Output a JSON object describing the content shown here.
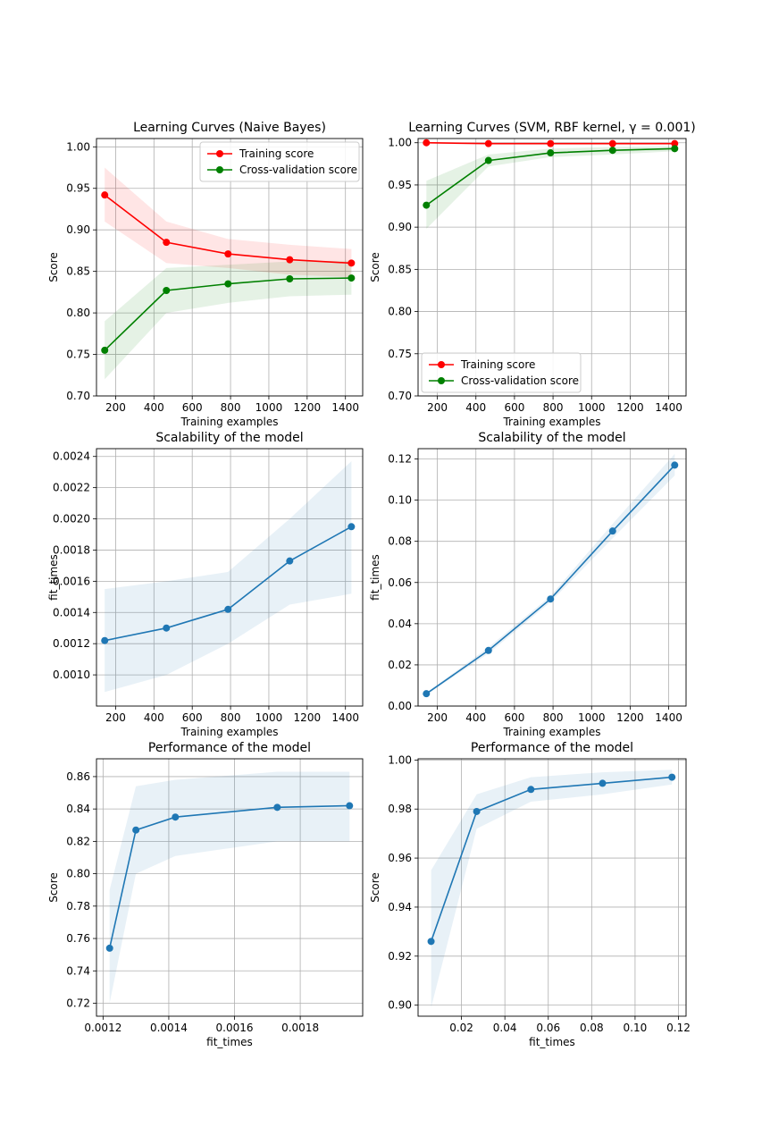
{
  "chart_data": [
    {
      "type": "line",
      "title": "Learning Curves (Naive Bayes)",
      "xlabel": "Training examples",
      "ylabel": "Score",
      "xlim": [
        100,
        1490
      ],
      "ylim": [
        0.7,
        1.01
      ],
      "xticks": [
        200,
        400,
        600,
        800,
        1000,
        1200,
        1400
      ],
      "yticks": [
        0.7,
        0.75,
        0.8,
        0.85,
        0.9,
        0.95,
        1.0
      ],
      "xtick_labels": [
        "200",
        "400",
        "600",
        "800",
        "1000",
        "1200",
        "1400"
      ],
      "ytick_labels": [
        "0.70",
        "0.75",
        "0.80",
        "0.85",
        "0.90",
        "0.95",
        "1.00"
      ],
      "grid": true,
      "legend": "upper right",
      "x": [
        143,
        465,
        787,
        1109,
        1431
      ],
      "series": [
        {
          "name": "Training score",
          "color": "#ff0000",
          "values": [
            0.942,
            0.885,
            0.871,
            0.864,
            0.86
          ],
          "band_lower": [
            0.91,
            0.86,
            0.854,
            0.846,
            0.843
          ],
          "band_upper": [
            0.975,
            0.91,
            0.889,
            0.882,
            0.877
          ]
        },
        {
          "name": "Cross-validation score",
          "color": "#008000",
          "values": [
            0.755,
            0.827,
            0.835,
            0.841,
            0.842
          ],
          "band_lower": [
            0.72,
            0.8,
            0.812,
            0.82,
            0.822
          ],
          "band_upper": [
            0.79,
            0.854,
            0.858,
            0.862,
            0.863
          ]
        }
      ]
    },
    {
      "type": "line",
      "title": "Learning Curves (SVM, RBF kernel, γ = 0.001)",
      "xlabel": "Training examples",
      "ylabel": "Score",
      "xlim": [
        100,
        1490
      ],
      "ylim": [
        0.7,
        1.005
      ],
      "xticks": [
        200,
        400,
        600,
        800,
        1000,
        1200,
        1400
      ],
      "yticks": [
        0.7,
        0.75,
        0.8,
        0.85,
        0.9,
        0.95,
        1.0
      ],
      "xtick_labels": [
        "200",
        "400",
        "600",
        "800",
        "1000",
        "1200",
        "1400"
      ],
      "ytick_labels": [
        "0.70",
        "0.75",
        "0.80",
        "0.85",
        "0.90",
        "0.95",
        "1.00"
      ],
      "grid": true,
      "legend": "lower left",
      "x": [
        143,
        465,
        787,
        1109,
        1431
      ],
      "series": [
        {
          "name": "Training score",
          "color": "#ff0000",
          "values": [
            1.0,
            0.999,
            0.999,
            0.999,
            0.999
          ],
          "band_lower": [
            0.999,
            0.998,
            0.998,
            0.998,
            0.998
          ],
          "band_upper": [
            1.0,
            1.0,
            1.0,
            1.0,
            1.0
          ]
        },
        {
          "name": "Cross-validation score",
          "color": "#008000",
          "values": [
            0.926,
            0.979,
            0.988,
            0.991,
            0.993
          ],
          "band_lower": [
            0.898,
            0.972,
            0.983,
            0.986,
            0.99
          ],
          "band_upper": [
            0.955,
            0.986,
            0.993,
            0.995,
            0.996
          ]
        }
      ]
    },
    {
      "type": "line",
      "title": "Scalability of the model",
      "xlabel": "Training examples",
      "ylabel": "fit_times",
      "xlim": [
        100,
        1490
      ],
      "ylim": [
        0.0008,
        0.00245
      ],
      "xticks": [
        200,
        400,
        600,
        800,
        1000,
        1200,
        1400
      ],
      "yticks": [
        0.001,
        0.0012,
        0.0014,
        0.0016,
        0.0018,
        0.002,
        0.0022,
        0.0024
      ],
      "xtick_labels": [
        "200",
        "400",
        "600",
        "800",
        "1000",
        "1200",
        "1400"
      ],
      "ytick_labels": [
        "0.0010",
        "0.0012",
        "0.0014",
        "0.0016",
        "0.0018",
        "0.0020",
        "0.0022",
        "0.0024"
      ],
      "grid": true,
      "x": [
        143,
        465,
        787,
        1109,
        1431
      ],
      "series": [
        {
          "color": "#1f77b4",
          "values": [
            0.00122,
            0.0013,
            0.00142,
            0.00173,
            0.00195
          ],
          "band_lower": [
            0.00089,
            0.001,
            0.0012,
            0.00145,
            0.00152
          ],
          "band_upper": [
            0.00155,
            0.0016,
            0.00166,
            0.002,
            0.00237
          ]
        }
      ]
    },
    {
      "type": "line",
      "title": "Scalability of the model",
      "xlabel": "Training examples",
      "ylabel": "fit_times",
      "xlim": [
        100,
        1490
      ],
      "ylim": [
        0.0,
        0.125
      ],
      "xticks": [
        200,
        400,
        600,
        800,
        1000,
        1200,
        1400
      ],
      "yticks": [
        0.0,
        0.02,
        0.04,
        0.06,
        0.08,
        0.1,
        0.12
      ],
      "xtick_labels": [
        "200",
        "400",
        "600",
        "800",
        "1000",
        "1200",
        "1400"
      ],
      "ytick_labels": [
        "0.00",
        "0.02",
        "0.04",
        "0.06",
        "0.08",
        "0.10",
        "0.12"
      ],
      "grid": true,
      "x": [
        143,
        465,
        787,
        1109,
        1431
      ],
      "series": [
        {
          "color": "#1f77b4",
          "values": [
            0.006,
            0.027,
            0.052,
            0.085,
            0.117
          ],
          "band_lower": [
            0.0055,
            0.0255,
            0.0505,
            0.0815,
            0.112
          ],
          "band_upper": [
            0.0065,
            0.0285,
            0.0535,
            0.0885,
            0.1225
          ]
        }
      ]
    },
    {
      "type": "line",
      "title": "Performance of the model",
      "xlabel": "fit_times",
      "ylabel": "Score",
      "xlim": [
        0.00118,
        0.00199
      ],
      "ylim": [
        0.712,
        0.871
      ],
      "xticks": [
        0.0012,
        0.0014,
        0.0016,
        0.0018
      ],
      "yticks": [
        0.72,
        0.74,
        0.76,
        0.78,
        0.8,
        0.82,
        0.84,
        0.86
      ],
      "xtick_labels": [
        "0.0012",
        "0.0014",
        "0.0016",
        "0.0018"
      ],
      "ytick_labels": [
        "0.72",
        "0.74",
        "0.76",
        "0.78",
        "0.80",
        "0.82",
        "0.84",
        "0.86"
      ],
      "grid": true,
      "x": [
        0.00122,
        0.0013,
        0.00142,
        0.00173,
        0.00195
      ],
      "series": [
        {
          "color": "#1f77b4",
          "values": [
            0.754,
            0.827,
            0.835,
            0.841,
            0.842
          ],
          "band_lower": [
            0.72,
            0.8,
            0.811,
            0.82,
            0.82
          ],
          "band_upper": [
            0.79,
            0.854,
            0.858,
            0.863,
            0.863
          ]
        }
      ]
    },
    {
      "type": "line",
      "title": "Performance of the model",
      "xlabel": "fit_times",
      "ylabel": "Score",
      "xlim": [
        0.0,
        0.1235
      ],
      "ylim": [
        0.8955,
        1.0005
      ],
      "xticks": [
        0.02,
        0.04,
        0.06,
        0.08,
        0.1,
        0.12
      ],
      "yticks": [
        0.9,
        0.92,
        0.94,
        0.96,
        0.98,
        1.0
      ],
      "xtick_labels": [
        "0.02",
        "0.04",
        "0.06",
        "0.08",
        "0.10",
        "0.12"
      ],
      "ytick_labels": [
        "0.90",
        "0.92",
        "0.94",
        "0.96",
        "0.98",
        "1.00"
      ],
      "grid": true,
      "x": [
        0.006,
        0.027,
        0.052,
        0.085,
        0.117
      ],
      "series": [
        {
          "color": "#1f77b4",
          "values": [
            0.926,
            0.979,
            0.988,
            0.9905,
            0.993
          ],
          "band_lower": [
            0.899,
            0.972,
            0.983,
            0.986,
            0.99
          ],
          "band_upper": [
            0.955,
            0.986,
            0.993,
            0.995,
            0.996
          ]
        }
      ]
    }
  ]
}
